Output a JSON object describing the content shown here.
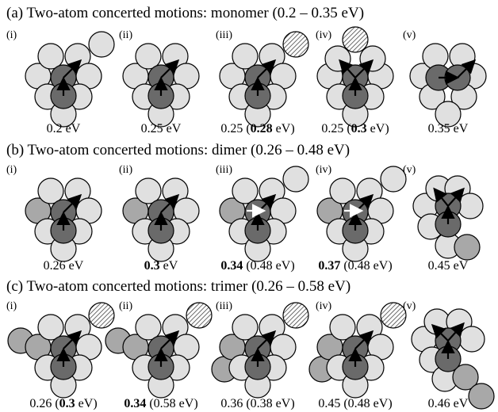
{
  "rows": [
    {
      "title": "(a) Two-atom concerted motions: monomer (0.2 – 0.35 eV)",
      "panels": [
        {
          "label": "(i)",
          "caption": [
            {
              "text": "0.2 eV",
              "bold": false
            }
          ]
        },
        {
          "label": "(ii)",
          "caption": [
            {
              "text": "0.25 eV",
              "bold": false
            }
          ]
        },
        {
          "label": "(iii)",
          "caption": [
            {
              "text": "0.25 (",
              "bold": false
            },
            {
              "text": "0.28",
              "bold": true
            },
            {
              "text": " eV)",
              "bold": false
            }
          ]
        },
        {
          "label": "(iv)",
          "caption": [
            {
              "text": "0.25 (",
              "bold": false
            },
            {
              "text": "0.3",
              "bold": true
            },
            {
              "text": " eV)",
              "bold": false
            }
          ]
        },
        {
          "label": "(v)",
          "caption": [
            {
              "text": "0.35 eV",
              "bold": false
            }
          ]
        }
      ]
    },
    {
      "title": "(b) Two-atom concerted motions: dimer (0.26 – 0.48 eV)",
      "panels": [
        {
          "label": "(i)",
          "caption": [
            {
              "text": "0.26 eV",
              "bold": false
            }
          ]
        },
        {
          "label": "(ii)",
          "caption": [
            {
              "text": "0.3",
              "bold": true
            },
            {
              "text": " eV",
              "bold": false
            }
          ]
        },
        {
          "label": "(iii)",
          "caption": [
            {
              "text": "0.34",
              "bold": true
            },
            {
              "text": " (0.48 eV)",
              "bold": false
            }
          ]
        },
        {
          "label": "(iv)",
          "caption": [
            {
              "text": "0.37",
              "bold": true
            },
            {
              "text": " (0.48 eV)",
              "bold": false
            }
          ]
        },
        {
          "label": "(v)",
          "caption": [
            {
              "text": "0.45 eV",
              "bold": false
            }
          ]
        }
      ]
    },
    {
      "title": "(c) Two-atom concerted motions: trimer (0.26 – 0.58 eV)",
      "panels": [
        {
          "label": "(i)",
          "caption": [
            {
              "text": "0.26 (",
              "bold": false
            },
            {
              "text": "0.3",
              "bold": true
            },
            {
              "text": " eV)",
              "bold": false
            }
          ]
        },
        {
          "label": "(ii)",
          "caption": [
            {
              "text": "0.34",
              "bold": true
            },
            {
              "text": " (0.58 eV)",
              "bold": false
            }
          ]
        },
        {
          "label": "(iii)",
          "caption": [
            {
              "text": "0.36 (0.38 eV)",
              "bold": false
            }
          ]
        },
        {
          "label": "(iv)",
          "caption": [
            {
              "text": "0.45 (0.48 eV)",
              "bold": false
            }
          ]
        },
        {
          "label": "(v)",
          "caption": [
            {
              "text": "0.46 eV",
              "bold": false
            }
          ]
        }
      ]
    }
  ]
}
